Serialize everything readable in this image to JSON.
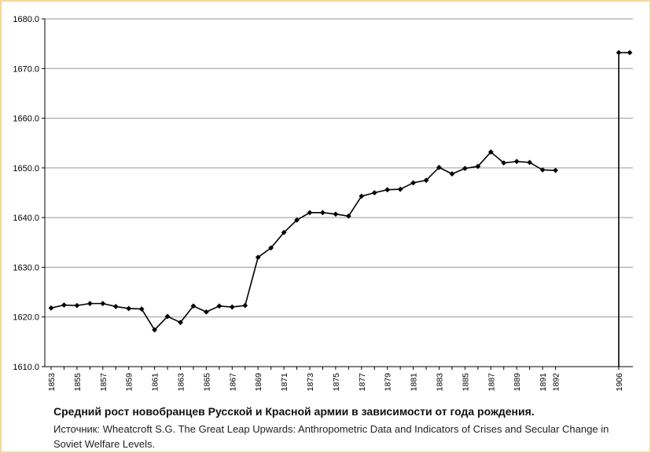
{
  "chart_data": {
    "type": "line",
    "title": "Средний рост новобранцев Русской и Красной армии в зависимости от года рождения.",
    "source": "Источник: Wheatcroft S.G. The Great Leap Upwards: Anthropometric Data and Indicators of Crises and Secular Change in Soviet Welfare Levels.",
    "ylim": [
      1610,
      1680
    ],
    "y_ticks": [
      "1610.0",
      "1620.0",
      "1630.0",
      "1640.0",
      "1650.0",
      "1660.0",
      "1670.0",
      "1680.0"
    ],
    "x_ticks": [
      "1853",
      "1855",
      "1857",
      "1859",
      "1861",
      "1863",
      "1865",
      "1867",
      "1869",
      "1871",
      "1873",
      "1875",
      "1877",
      "1879",
      "1881",
      "1883",
      "1885",
      "1887",
      "1889",
      "1891",
      "1892",
      "1906"
    ],
    "grid": true,
    "legend": "none",
    "series": [
      {
        "name": "Средний рост",
        "x": [
          "1853",
          "1854",
          "1855",
          "1856",
          "1857",
          "1858",
          "1859",
          "1860",
          "1861",
          "1862",
          "1863",
          "1864",
          "1865",
          "1866",
          "1867",
          "1868",
          "1869",
          "1870",
          "1871",
          "1872",
          "1873",
          "1874",
          "1875",
          "1876",
          "1877",
          "1878",
          "1879",
          "1880",
          "1881",
          "1882",
          "1883",
          "1884",
          "1885",
          "1886",
          "1887",
          "1888",
          "1889",
          "1890",
          "1891",
          "1892",
          "1906",
          "1907"
        ],
        "values": [
          1621.8,
          1622.4,
          1622.3,
          1622.7,
          1622.7,
          1622.1,
          1621.7,
          1621.6,
          1617.4,
          1620.1,
          1618.9,
          1622.2,
          1621.0,
          1622.2,
          1622.0,
          1622.3,
          1632.0,
          1633.9,
          1637.0,
          1639.5,
          1641.0,
          1641.0,
          1640.7,
          1640.3,
          1644.3,
          1645.0,
          1645.6,
          1645.7,
          1647.0,
          1647.5,
          1650.1,
          1648.8,
          1649.9,
          1650.3,
          1653.2,
          1651.0,
          1651.3,
          1651.1,
          1649.6,
          1649.5,
          1673.2,
          1673.2
        ],
        "breaks_after": [
          "1892"
        ]
      }
    ],
    "colors": {
      "line": "#000000",
      "grid": "#9a9a9a",
      "axis": "#000000"
    }
  }
}
